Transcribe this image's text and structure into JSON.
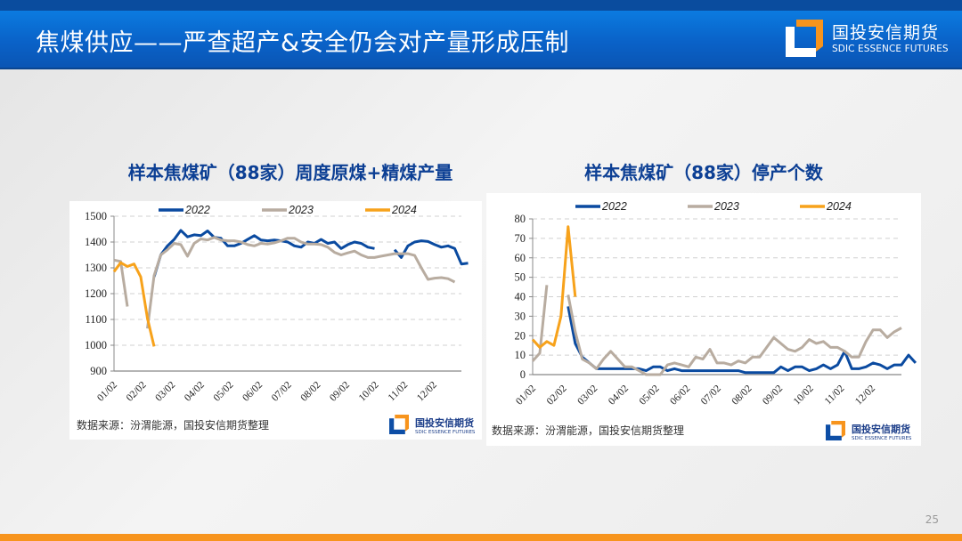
{
  "header": {
    "title": "焦煤供应——严查超产&安全仍会对产量形成压制",
    "logo_cn": "国投安信期货",
    "logo_en": "SDIC ESSENCE FUTURES"
  },
  "colors": {
    "header_blue": "#0a62c8",
    "title_blue": "#0c3f94",
    "series_2022": "#0a4aa0",
    "series_2023": "#b8aca0",
    "series_2024": "#f7a21b",
    "bottom_bar": "#f7941d"
  },
  "left_panel": {
    "title": "样本焦煤矿（88家）周度原煤+精煤产量",
    "source": "数据来源：汾渭能源，国投安信期货整理",
    "logo_cn": "国投安信期货",
    "logo_en": "SDIC ESSENCE FUTURES"
  },
  "right_panel": {
    "title": "样本焦煤矿（88家）停产个数",
    "source": "数据来源：汾渭能源，国投安信期货整理",
    "logo_cn": "国投安信期货",
    "logo_en": "SDIC ESSENCE FUTURES"
  },
  "page_number": "25",
  "chart_data": [
    {
      "type": "line",
      "title": "样本焦煤矿（88家）周度原煤+精煤产量",
      "xlabel": "",
      "ylabel": "",
      "ylim": [
        900,
        1500
      ],
      "yticks": [
        900,
        1000,
        1100,
        1200,
        1300,
        1400,
        1500
      ],
      "grid": true,
      "legend_position": "top",
      "x_tick_labels": [
        "01/02",
        "02/02",
        "03/02",
        "04/02",
        "05/02",
        "06/02",
        "07/02",
        "08/02",
        "09/02",
        "10/02",
        "11/02",
        "12/02"
      ],
      "weeks": 53,
      "series": [
        {
          "name": "2022",
          "start_week": 6,
          "values": [
            1265,
            1350,
            1385,
            1410,
            1445,
            1420,
            1428,
            1425,
            1443,
            1418,
            1415,
            1385,
            1385,
            1395,
            1410,
            1425,
            1408,
            1405,
            1408,
            1405,
            1400,
            1385,
            1380,
            1400,
            1395,
            1410,
            1395,
            1400,
            1375,
            1390,
            1400,
            1395,
            1380,
            1375,
            null,
            null,
            1370,
            1340,
            1385,
            1400,
            1405,
            1402,
            1390,
            1380,
            1385,
            1375,
            1315,
            1318
          ]
        },
        {
          "name": "2023",
          "start_week": 0,
          "values": [
            1330,
            1325,
            1150,
            null,
            null,
            1065,
            1270,
            1350,
            1370,
            1395,
            1390,
            1345,
            1395,
            1412,
            1408,
            1418,
            1408,
            1405,
            1405,
            1400,
            1390,
            1385,
            1395,
            1392,
            1397,
            1405,
            1415,
            1415,
            1400,
            1392,
            1392,
            1390,
            1380,
            1360,
            1350,
            1358,
            1365,
            1350,
            1340,
            1340,
            1345,
            1350,
            1355,
            1355,
            1355,
            1348,
            1300,
            1255,
            1260,
            1262,
            1258,
            1245
          ]
        },
        {
          "name": "2024",
          "start_week": 0,
          "values": [
            1285,
            1320,
            1305,
            1315,
            1265,
            1105,
            995
          ]
        }
      ]
    },
    {
      "type": "line",
      "title": "样本焦煤矿（88家）停产个数",
      "xlabel": "",
      "ylabel": "",
      "ylim": [
        0,
        80
      ],
      "yticks": [
        0,
        10,
        20,
        30,
        40,
        50,
        60,
        70,
        80
      ],
      "grid": true,
      "legend_position": "top",
      "x_tick_labels": [
        "01/02",
        "02/02",
        "03/02",
        "04/02",
        "05/02",
        "06/02",
        "07/02",
        "08/02",
        "09/02",
        "10/02",
        "11/02",
        "12/02"
      ],
      "weeks": 53,
      "series": [
        {
          "name": "2022",
          "start_week": 5,
          "values": [
            35,
            16,
            9,
            6,
            3,
            3,
            3,
            3,
            3,
            3,
            3,
            2,
            4,
            4,
            2,
            3,
            2,
            2,
            2,
            2,
            2,
            2,
            2,
            2,
            2,
            1,
            1,
            1,
            1,
            1,
            4,
            2,
            4,
            4,
            2,
            3,
            5,
            3,
            5,
            12,
            3,
            3,
            4,
            6,
            5,
            3,
            5,
            5,
            10,
            6
          ]
        },
        {
          "name": "2023",
          "start_week": 0,
          "values": [
            7,
            11,
            46,
            null,
            null,
            41,
            22,
            8,
            6,
            3,
            8,
            12,
            8,
            4,
            4,
            2,
            0,
            0,
            0,
            5,
            6,
            5,
            4,
            9,
            8,
            13,
            6,
            6,
            5,
            7,
            6,
            9,
            9,
            14,
            19,
            16,
            13,
            12,
            14,
            18,
            16,
            17,
            14,
            14,
            12,
            9,
            9,
            17,
            23,
            23,
            19,
            22,
            24
          ]
        },
        {
          "name": "2024",
          "start_week": 0,
          "values": [
            18,
            14,
            17,
            15,
            30,
            76,
            40
          ]
        }
      ]
    }
  ]
}
